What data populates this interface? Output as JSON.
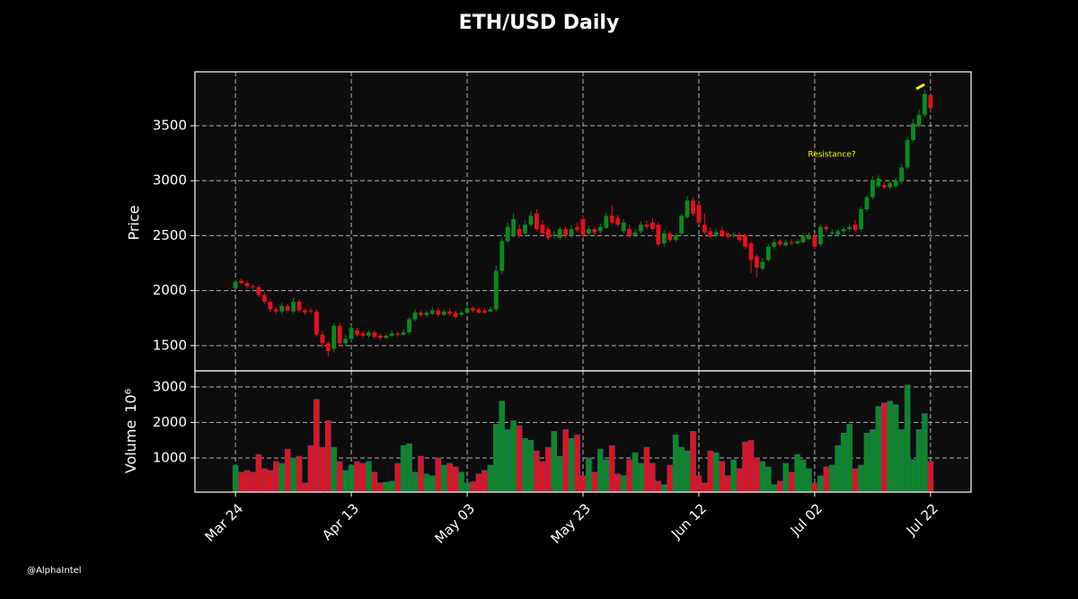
{
  "chart_data": {
    "type": "candlestick",
    "title": "ETH/USD Daily",
    "ylabel": "Price",
    "volume_label": "Volume",
    "volume_multiplier": "10⁶",
    "annotation": "Resistance?",
    "watermark": "@AlphaIntel",
    "up_color": "#0a8a1e",
    "down_color": "#e8101a",
    "grid": true,
    "categories": [
      "Mar 24",
      null,
      null,
      null,
      null,
      null,
      null,
      null,
      null,
      null,
      null,
      null,
      null,
      null,
      null,
      null,
      null,
      null,
      null,
      null,
      "Apr 13",
      null,
      null,
      null,
      null,
      null,
      null,
      null,
      null,
      null,
      null,
      null,
      null,
      null,
      null,
      null,
      null,
      null,
      null,
      null,
      "May 03",
      null,
      null,
      null,
      null,
      null,
      null,
      null,
      null,
      null,
      null,
      null,
      null,
      null,
      null,
      null,
      null,
      null,
      null,
      null,
      "May 23",
      null,
      null,
      null,
      null,
      null,
      null,
      null,
      null,
      null,
      null,
      null,
      null,
      null,
      null,
      null,
      null,
      null,
      null,
      null,
      "Jun 12",
      null,
      null,
      null,
      null,
      null,
      null,
      null,
      null,
      null,
      null,
      null,
      null,
      null,
      null,
      null,
      null,
      null,
      null,
      null,
      "Jul 02",
      null,
      null,
      null,
      null,
      null,
      null,
      null,
      null,
      null,
      null,
      null,
      null,
      null,
      null,
      null,
      null,
      null,
      null,
      null,
      "Jul 22"
    ],
    "open": [
      2020,
      2090,
      2070,
      2040,
      2030,
      1960,
      1900,
      1830,
      1810,
      1860,
      1810,
      1900,
      1820,
      1820,
      1810,
      1600,
      1520,
      1470,
      1680,
      1520,
      1560,
      1640,
      1610,
      1590,
      1620,
      1590,
      1570,
      1590,
      1610,
      1600,
      1620,
      1740,
      1800,
      1780,
      1790,
      1820,
      1780,
      1810,
      1800,
      1780,
      1800,
      1840,
      1830,
      1820,
      1810,
      1830,
      2180,
      2450,
      2500,
      2560,
      2520,
      2600,
      2700,
      2600,
      2560,
      2500,
      2480,
      2560,
      2500,
      2580,
      2650,
      2520,
      2560,
      2540,
      2570,
      2680,
      2660,
      2540,
      2560,
      2500,
      2540,
      2600,
      2620,
      2600,
      2430,
      2520,
      2460,
      2520,
      2670,
      2820,
      2780,
      2600,
      2540,
      2500,
      2550,
      2520,
      2500,
      2510,
      2500,
      2430,
      2310,
      2200,
      2280,
      2400,
      2450,
      2410,
      2440,
      2430,
      2440,
      2470,
      2500,
      2420,
      2580,
      2520,
      2510,
      2540,
      2560,
      2600,
      2560,
      2740,
      2850,
      2950,
      2960,
      2940,
      2950,
      2990,
      3120,
      3370,
      3500,
      3600,
      3780
    ],
    "high": [
      2100,
      2110,
      2090,
      2060,
      2050,
      1980,
      1920,
      1850,
      1890,
      1880,
      1940,
      1920,
      1840,
      1840,
      1830,
      1630,
      1540,
      1700,
      1700,
      1600,
      1690,
      1660,
      1630,
      1640,
      1640,
      1610,
      1610,
      1640,
      1630,
      1650,
      1760,
      1830,
      1820,
      1820,
      1850,
      1840,
      1830,
      1840,
      1820,
      1820,
      1870,
      1860,
      1850,
      1840,
      1850,
      2230,
      2480,
      2620,
      2700,
      2600,
      2640,
      2720,
      2740,
      2640,
      2590,
      2540,
      2580,
      2580,
      2590,
      2620,
      2680,
      2590,
      2580,
      2610,
      2710,
      2780,
      2690,
      2650,
      2600,
      2560,
      2630,
      2640,
      2660,
      2620,
      2550,
      2540,
      2520,
      2700,
      2860,
      2850,
      2800,
      2700,
      2580,
      2560,
      2580,
      2540,
      2530,
      2530,
      2520,
      2450,
      2330,
      2300,
      2420,
      2470,
      2470,
      2460,
      2470,
      2470,
      2520,
      2530,
      2520,
      2600,
      2600,
      2560,
      2560,
      2580,
      2600,
      2640,
      2760,
      2870,
      3040,
      3050,
      2990,
      3000,
      3030,
      3150,
      3400,
      3560,
      3650,
      3830,
      3790
    ],
    "low": [
      2000,
      2060,
      2020,
      2010,
      1940,
      1880,
      1800,
      1790,
      1790,
      1800,
      1790,
      1800,
      1780,
      1790,
      1580,
      1480,
      1400,
      1440,
      1500,
      1500,
      1540,
      1580,
      1570,
      1570,
      1560,
      1550,
      1560,
      1580,
      1580,
      1590,
      1600,
      1720,
      1760,
      1760,
      1780,
      1760,
      1770,
      1770,
      1740,
      1760,
      1790,
      1800,
      1790,
      1790,
      1800,
      1810,
      2150,
      2430,
      2480,
      2480,
      2500,
      2580,
      2540,
      2500,
      2460,
      2480,
      2460,
      2480,
      2480,
      2530,
      2480,
      2500,
      2510,
      2520,
      2560,
      2600,
      2580,
      2520,
      2480,
      2480,
      2520,
      2560,
      2540,
      2400,
      2400,
      2440,
      2440,
      2500,
      2650,
      2680,
      2600,
      2510,
      2470,
      2480,
      2480,
      2470,
      2480,
      2440,
      2380,
      2160,
      2120,
      2180,
      2260,
      2380,
      2400,
      2400,
      2410,
      2420,
      2430,
      2460,
      2380,
      2400,
      2540,
      2500,
      2490,
      2520,
      2540,
      2530,
      2540,
      2720,
      2830,
      2930,
      2920,
      2920,
      2940,
      2970,
      3100,
      3350,
      3480,
      3580,
      3620
    ],
    "close": [
      2080,
      2070,
      2040,
      2030,
      1960,
      1900,
      1830,
      1810,
      1860,
      1820,
      1900,
      1820,
      1800,
      1810,
      1600,
      1520,
      1450,
      1680,
      1520,
      1560,
      1660,
      1600,
      1590,
      1620,
      1580,
      1570,
      1590,
      1610,
      1600,
      1620,
      1740,
      1800,
      1780,
      1800,
      1820,
      1780,
      1810,
      1790,
      1760,
      1800,
      1840,
      1820,
      1800,
      1800,
      1830,
      2180,
      2450,
      2580,
      2650,
      2500,
      2600,
      2680,
      2560,
      2520,
      2480,
      2510,
      2560,
      2500,
      2560,
      2550,
      2500,
      2560,
      2530,
      2580,
      2680,
      2620,
      2600,
      2620,
      2500,
      2530,
      2600,
      2580,
      2560,
      2420,
      2520,
      2460,
      2500,
      2680,
      2820,
      2700,
      2620,
      2530,
      2490,
      2530,
      2500,
      2490,
      2510,
      2460,
      2400,
      2280,
      2210,
      2260,
      2400,
      2440,
      2420,
      2440,
      2430,
      2450,
      2500,
      2500,
      2400,
      2580,
      2560,
      2530,
      2540,
      2560,
      2580,
      2550,
      2740,
      2850,
      3000,
      3020,
      2940,
      2980,
      3000,
      3120,
      3370,
      3520,
      3600,
      3790,
      3660
    ],
    "volume": [
      800,
      600,
      650,
      600,
      1100,
      700,
      650,
      900,
      850,
      1250,
      1000,
      1050,
      300,
      1350,
      2650,
      1300,
      2050,
      1300,
      900,
      650,
      800,
      900,
      850,
      900,
      600,
      300,
      320,
      350,
      850,
      1350,
      1400,
      600,
      1050,
      550,
      500,
      1000,
      800,
      850,
      750,
      600,
      300,
      330,
      550,
      650,
      800,
      1950,
      2600,
      1800,
      2050,
      1900,
      1550,
      1500,
      1200,
      900,
      1300,
      1750,
      1050,
      1800,
      1550,
      1650,
      500,
      1000,
      600,
      1250,
      950,
      1350,
      550,
      500,
      950,
      1150,
      850,
      1300,
      850,
      350,
      250,
      800,
      1650,
      1300,
      1200,
      1750,
      500,
      300,
      1200,
      1150,
      900,
      500,
      950,
      700,
      1450,
      1500,
      1000,
      900,
      750,
      250,
      350,
      850,
      600,
      1100,
      950,
      700,
      300,
      500,
      750,
      800,
      1350,
      1700,
      1950,
      700,
      800,
      1700,
      1800,
      2450,
      2550,
      2600,
      2500,
      1800,
      3050,
      950,
      1800,
      2250,
      900
    ],
    "ylim": [
      1270,
      3990
    ],
    "yticks": [
      1500,
      2000,
      2500,
      3000,
      3500
    ],
    "y2lim": [
      40,
      3450
    ],
    "y2ticks": [
      1000,
      2000,
      3000
    ]
  }
}
